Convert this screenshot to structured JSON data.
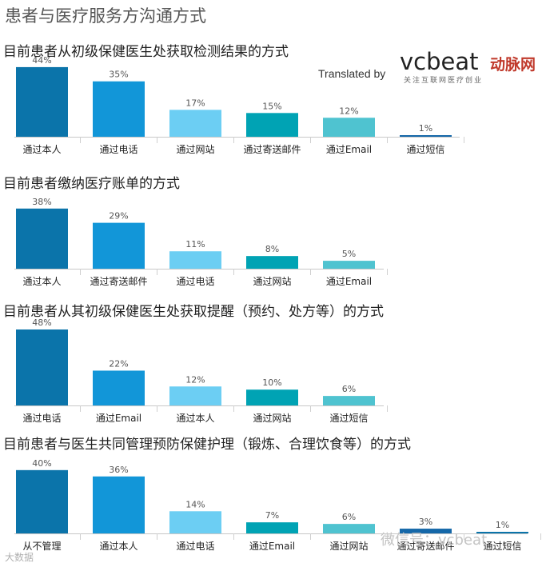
{
  "page_title": "患者与医疗服务方沟通方式",
  "translated_label": "Translated by",
  "logo": {
    "main": "vcbeat",
    "cn": "动脉网",
    "sub": "关注互联网医疗创业"
  },
  "watermark_left": "大数据",
  "watermark_right": "微信号：vcbeat",
  "colors": [
    "#0b74aa",
    "#1296d8",
    "#6ccef3",
    "#00a3b4",
    "#4fc3d0",
    "#1467a8"
  ],
  "chart_data": [
    {
      "type": "bar",
      "title": "目前患者从初级保健医生处获取检测结果的方式",
      "categories": [
        "通过本人",
        "通过电话",
        "通过网站",
        "通过寄送邮件",
        "通过Email",
        "通过短信"
      ],
      "values": [
        44,
        35,
        17,
        15,
        12,
        1
      ],
      "value_labels": [
        "44%",
        "35%",
        "17%",
        "15%",
        "12%",
        "1%"
      ],
      "ylim": [
        0,
        48
      ]
    },
    {
      "type": "bar",
      "title": "目前患者缴纳医疗账单的方式",
      "categories": [
        "通过本人",
        "通过寄送邮件",
        "通过电话",
        "通过网站",
        "通过Email"
      ],
      "values": [
        38,
        29,
        11,
        8,
        5
      ],
      "value_labels": [
        "38%",
        "29%",
        "11%",
        "8%",
        "5%"
      ],
      "ylim": [
        0,
        48
      ]
    },
    {
      "type": "bar",
      "title": "目前患者从其初级保健医生处获取提醒（预约、处方等）的方式",
      "categories": [
        "通过电话",
        "通过Email",
        "通过本人",
        "通过网站",
        "通过短信"
      ],
      "values": [
        48,
        22,
        12,
        10,
        6
      ],
      "value_labels": [
        "48%",
        "22%",
        "12%",
        "10%",
        "6%"
      ],
      "ylim": [
        0,
        48
      ]
    },
    {
      "type": "bar",
      "title": "目前患者与医生共同管理预防保健护理（锻炼、合理饮食等）的方式",
      "categories": [
        "从不管理",
        "通过本人",
        "通过电话",
        "通过Email",
        "通过网站",
        "通过寄送邮件",
        "通过短信"
      ],
      "values": [
        40,
        36,
        14,
        7,
        6,
        3,
        1
      ],
      "value_labels": [
        "40%",
        "36%",
        "14%",
        "7%",
        "6%",
        "3%",
        "1%"
      ],
      "ylim": [
        0,
        48
      ]
    }
  ]
}
